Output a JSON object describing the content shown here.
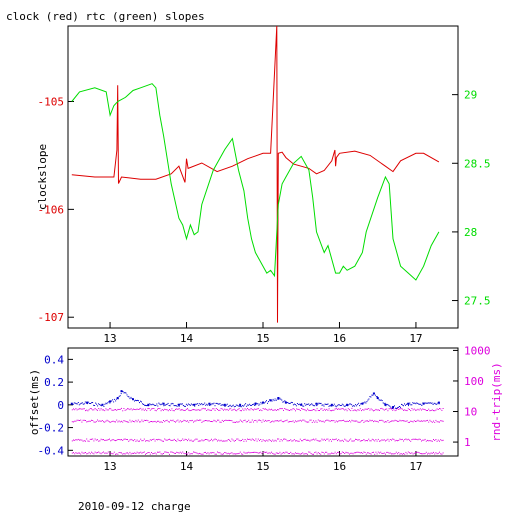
{
  "title": "clock (red) rtc (green) slopes",
  "footer": "2010-09-12 charge",
  "colors": {
    "axis": "#000000",
    "red": "#dd0000",
    "green": "#00dd00",
    "blue": "#0000cc",
    "magenta": "#dd00dd"
  },
  "chart_data": [
    {
      "type": "line",
      "x_range": [
        12.45,
        17.55
      ],
      "x_ticks": [
        "13",
        "14",
        "15",
        "16",
        "17"
      ],
      "ylabel": "clockslope",
      "y_range": [
        -107.1,
        -104.3
      ],
      "y_ticks": [
        "-105",
        "-106",
        "-107"
      ],
      "y2_range": [
        27.3,
        29.5
      ],
      "y2_ticks": [
        "29",
        "28.5",
        "28",
        "27.5"
      ],
      "series": [
        {
          "color": "red",
          "axis": "left",
          "x": [
            12.5,
            12.8,
            13.05,
            13.09,
            13.1,
            13.11,
            13.15,
            13.4,
            13.6,
            13.8,
            13.9,
            13.98,
            14.0,
            14.02,
            14.2,
            14.4,
            14.6,
            14.8,
            15.0,
            15.1,
            15.18,
            15.19,
            15.2,
            15.25,
            15.3,
            15.4,
            15.5,
            15.6,
            15.7,
            15.8,
            15.9,
            15.94,
            15.95,
            15.96,
            16.0,
            16.2,
            16.4,
            16.6,
            16.7,
            16.8,
            17.0,
            17.1,
            17.3
          ],
          "y": [
            -105.68,
            -105.7,
            -105.7,
            -105.45,
            -104.85,
            -105.76,
            -105.7,
            -105.72,
            -105.72,
            -105.67,
            -105.6,
            -105.75,
            -105.53,
            -105.62,
            -105.57,
            -105.65,
            -105.6,
            -105.53,
            -105.48,
            -105.48,
            -104.3,
            -107.05,
            -105.48,
            -105.47,
            -105.52,
            -105.58,
            -105.6,
            -105.62,
            -105.67,
            -105.64,
            -105.55,
            -105.45,
            -105.6,
            -105.52,
            -105.48,
            -105.46,
            -105.5,
            -105.6,
            -105.65,
            -105.55,
            -105.48,
            -105.48,
            -105.56
          ]
        },
        {
          "color": "green",
          "axis": "right",
          "x": [
            12.5,
            12.6,
            12.8,
            12.95,
            13.0,
            13.05,
            13.1,
            13.2,
            13.3,
            13.4,
            13.55,
            13.6,
            13.65,
            13.7,
            13.8,
            13.9,
            13.95,
            14.0,
            14.05,
            14.1,
            14.15,
            14.2,
            14.35,
            14.5,
            14.6,
            14.68,
            14.75,
            14.8,
            14.85,
            14.9,
            15.0,
            15.05,
            15.1,
            15.15,
            15.2,
            15.25,
            15.3,
            15.4,
            15.5,
            15.6,
            15.65,
            15.7,
            15.8,
            15.85,
            15.95,
            16.0,
            16.05,
            16.1,
            16.2,
            16.3,
            16.35,
            16.5,
            16.6,
            16.65,
            16.7,
            16.8,
            16.9,
            17.0,
            17.1,
            17.2,
            17.3
          ],
          "y": [
            28.95,
            29.02,
            29.05,
            29.02,
            28.85,
            28.92,
            28.95,
            28.98,
            29.03,
            29.05,
            29.08,
            29.05,
            28.85,
            28.7,
            28.35,
            28.1,
            28.05,
            27.95,
            28.05,
            27.98,
            28.0,
            28.2,
            28.45,
            28.6,
            28.68,
            28.45,
            28.3,
            28.1,
            27.95,
            27.85,
            27.75,
            27.7,
            27.72,
            27.68,
            28.2,
            28.35,
            28.4,
            28.5,
            28.55,
            28.45,
            28.25,
            28.0,
            27.85,
            27.9,
            27.7,
            27.7,
            27.75,
            27.72,
            27.75,
            27.85,
            28.0,
            28.25,
            28.4,
            28.35,
            27.95,
            27.75,
            27.7,
            27.65,
            27.75,
            27.9,
            28.0
          ]
        }
      ]
    },
    {
      "type": "scatter",
      "x_range": [
        12.45,
        17.55
      ],
      "x_ticks": [
        "13",
        "14",
        "15",
        "16",
        "17"
      ],
      "ylabel": "offset(ms)",
      "y_range": [
        -0.45,
        0.5
      ],
      "y_ticks": [
        "0.4",
        "0.2",
        "0",
        "-0.2",
        "-0.4"
      ],
      "y2label": "rnd-trip(ms)",
      "y2_scale": "log",
      "y2_range": [
        0.35,
        1200
      ],
      "y2_ticks": [
        "1000",
        "100",
        "10",
        "1"
      ],
      "series": [
        {
          "color": "blue",
          "axis": "left",
          "x": [
            12.5,
            12.7,
            12.9,
            13.0,
            13.1,
            13.15,
            13.3,
            13.5,
            13.7,
            13.9,
            14.1,
            14.3,
            14.5,
            14.7,
            14.9,
            15.0,
            15.1,
            15.2,
            15.3,
            15.5,
            15.7,
            15.9,
            16.1,
            16.3,
            16.45,
            16.5,
            16.6,
            16.7,
            16.9,
            17.1,
            17.3
          ],
          "y": [
            0.01,
            0.02,
            0.0,
            0.03,
            0.06,
            0.12,
            0.05,
            0.0,
            0.01,
            0.0,
            0.0,
            0.01,
            0.0,
            0.0,
            0.01,
            0.02,
            0.04,
            0.06,
            0.02,
            0.0,
            0.01,
            0.0,
            0.0,
            0.01,
            0.1,
            0.06,
            0.0,
            -0.02,
            0.01,
            0.01,
            0.02
          ]
        },
        {
          "color": "magenta",
          "axis": "right",
          "levels": [
            0.45,
            1.2,
            5,
            12
          ],
          "x_from": 12.5,
          "x_to": 17.35
        }
      ]
    }
  ]
}
